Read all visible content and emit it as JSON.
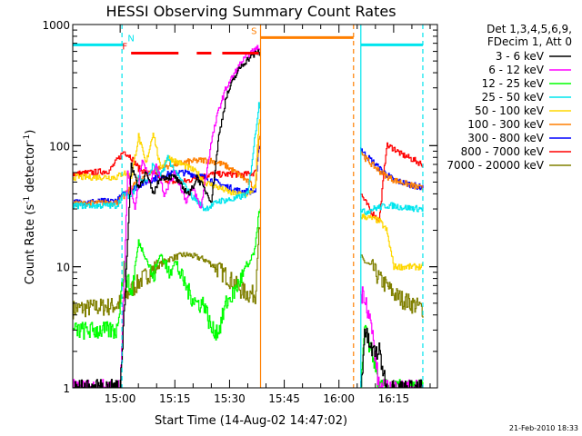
{
  "chart_data": {
    "type": "line",
    "title": "HESSI Observing Summary Count Rates",
    "xlabel": "Start Time (14-Aug-02 14:47:02)",
    "ylabel_main": "Count Rate (s",
    "ylabel_sup1": "-1",
    "ylabel_mid": " detector",
    "ylabel_sup2": "-1",
    "ylabel_end": ")",
    "y_scale": "log",
    "ylim": [
      1,
      1000
    ],
    "xlim_minutes": [
      0,
      100
    ],
    "x_ticks": [
      {
        "m": 13,
        "label": "15:00"
      },
      {
        "m": 28,
        "label": "15:15"
      },
      {
        "m": 43,
        "label": "15:30"
      },
      {
        "m": 58,
        "label": "15:45"
      },
      {
        "m": 73,
        "label": "16:00"
      },
      {
        "m": 88,
        "label": "16:15"
      }
    ],
    "y_ticks": [
      {
        "v": 1,
        "label": "1"
      },
      {
        "v": 10,
        "label": "10"
      },
      {
        "v": 100,
        "label": "100"
      },
      {
        "v": 1000,
        "label": "1000"
      }
    ],
    "legend_header": [
      "Det 1,3,4,5,6,9,",
      "FDecim 1, Att 0"
    ],
    "legend_position": "right",
    "timestamp": "21-Feb-2010 18:33",
    "flags": [
      {
        "label": "N",
        "color": "#00e5ee",
        "segments": [
          [
            0,
            14
          ],
          [
            79,
            96
          ]
        ],
        "y": 680
      },
      {
        "label": "F",
        "color": "#ff0000",
        "segments": [
          [
            16,
            29
          ],
          [
            34,
            38
          ],
          [
            41,
            51
          ]
        ],
        "y": 580
      },
      {
        "label": "S",
        "color": "#ff7f00",
        "segments": [
          [
            51.5,
            77
          ]
        ],
        "y": 780
      }
    ],
    "vlines": [
      {
        "m": 13.5,
        "color": "#00e5ee",
        "style": "dash"
      },
      {
        "m": 51.5,
        "color": "#ff7f00",
        "style": "solid"
      },
      {
        "m": 77,
        "color": "#ff7f00",
        "style": "dash"
      },
      {
        "m": 79,
        "color": "#00e5ee",
        "style": "solid"
      },
      {
        "m": 96,
        "color": "#00e5ee",
        "style": "dash"
      }
    ],
    "gaps": [
      [
        51.6,
        78.8
      ]
    ],
    "series": [
      {
        "name": "3 - 6 keV",
        "color": "#000000",
        "x": [
          0,
          13,
          16,
          18,
          20,
          22,
          24,
          28,
          30,
          32,
          34,
          38,
          40,
          42,
          44,
          46,
          48,
          51,
          79,
          80,
          82,
          84,
          86,
          88,
          90,
          96
        ],
        "y": [
          1,
          1,
          70,
          45,
          60,
          40,
          55,
          55,
          45,
          40,
          55,
          35,
          120,
          250,
          350,
          450,
          520,
          600,
          1,
          3,
          2,
          2,
          1,
          1,
          1,
          1
        ]
      },
      {
        "name": "6 - 12 keV",
        "color": "#ff00ff",
        "x": [
          0,
          13,
          15,
          17,
          19,
          21,
          23,
          25,
          28,
          31,
          33,
          35,
          38,
          40,
          42,
          44,
          46,
          48,
          51,
          79,
          80,
          82,
          84,
          86,
          88,
          90,
          96
        ],
        "y": [
          1,
          1,
          60,
          30,
          80,
          50,
          70,
          40,
          60,
          35,
          45,
          30,
          110,
          200,
          300,
          380,
          480,
          560,
          650,
          6,
          6,
          3,
          1,
          1,
          1,
          1,
          1
        ]
      },
      {
        "name": "12 - 25 keV",
        "color": "#00ff00",
        "x": [
          0,
          12,
          14,
          16,
          18,
          20,
          22,
          24,
          26,
          28,
          30,
          32,
          34,
          36,
          38,
          40,
          42,
          44,
          46,
          48,
          50,
          51,
          79,
          80,
          82,
          84,
          86,
          88,
          90,
          96
        ],
        "y": [
          3,
          3,
          10,
          6,
          16,
          12,
          8,
          13,
          9,
          11,
          8,
          6,
          5,
          5,
          3,
          3,
          5,
          6,
          8,
          10,
          14,
          30,
          1,
          3,
          2,
          1,
          1,
          1,
          1,
          1
        ]
      },
      {
        "name": "25 - 50 keV",
        "color": "#00e5ee",
        "x": [
          0,
          12,
          14,
          16,
          18,
          20,
          22,
          24,
          26,
          28,
          30,
          32,
          34,
          36,
          38,
          40,
          44,
          48,
          51,
          79,
          80,
          82,
          84,
          86,
          88,
          90,
          96
        ],
        "y": [
          32,
          32,
          40,
          38,
          55,
          50,
          70,
          55,
          80,
          60,
          50,
          40,
          35,
          30,
          32,
          35,
          36,
          40,
          220,
          30,
          28,
          30,
          31,
          32,
          32,
          31,
          30
        ]
      },
      {
        "name": "50 - 100 keV",
        "color": "#ffd700",
        "x": [
          0,
          12,
          14,
          16,
          18,
          20,
          22,
          24,
          26,
          28,
          30,
          32,
          34,
          36,
          40,
          44,
          48,
          50,
          51,
          79,
          80,
          82,
          84,
          86,
          88,
          90,
          96
        ],
        "y": [
          55,
          55,
          60,
          55,
          120,
          70,
          130,
          65,
          80,
          75,
          70,
          65,
          60,
          50,
          45,
          40,
          40,
          45,
          160,
          26,
          26,
          25,
          24,
          20,
          10,
          10,
          10
        ]
      },
      {
        "name": "100 - 300 keV",
        "color": "#ff7f00",
        "x": [
          0,
          12,
          14,
          16,
          18,
          20,
          22,
          24,
          26,
          28,
          30,
          32,
          34,
          36,
          38,
          40,
          42,
          44,
          46,
          48,
          50,
          51,
          79,
          80,
          82,
          84,
          86,
          88,
          90,
          96
        ],
        "y": [
          33,
          34,
          38,
          45,
          52,
          58,
          62,
          65,
          68,
          70,
          72,
          74,
          75,
          76,
          75,
          72,
          68,
          62,
          56,
          50,
          45,
          120,
          90,
          80,
          70,
          62,
          56,
          52,
          50,
          44
        ]
      },
      {
        "name": "300 - 800 keV",
        "color": "#0000ff",
        "x": [
          0,
          12,
          14,
          16,
          18,
          20,
          22,
          24,
          26,
          28,
          30,
          32,
          34,
          36,
          38,
          40,
          42,
          44,
          46,
          48,
          50,
          51,
          79,
          80,
          82,
          84,
          86,
          88,
          90,
          96
        ],
        "y": [
          34,
          35,
          40,
          43,
          47,
          50,
          53,
          56,
          58,
          60,
          60,
          59,
          57,
          55,
          52,
          49,
          46,
          44,
          42,
          42,
          42,
          100,
          95,
          85,
          75,
          65,
          58,
          52,
          50,
          45
        ]
      },
      {
        "name": "800 - 7000 keV",
        "color": "#ff0000",
        "x": [
          0,
          10,
          12,
          14,
          16,
          18,
          20,
          22,
          24,
          26,
          28,
          30,
          32,
          34,
          36,
          38,
          40,
          44,
          48,
          50,
          51,
          79,
          80,
          82,
          84,
          86,
          88,
          90,
          92,
          96
        ],
        "y": [
          58,
          62,
          75,
          90,
          80,
          65,
          60,
          58,
          55,
          52,
          50,
          50,
          52,
          55,
          56,
          58,
          58,
          58,
          58,
          60,
          100,
          40,
          35,
          28,
          24,
          100,
          95,
          85,
          80,
          70
        ]
      },
      {
        "name": "7000 - 20000 keV",
        "color": "#808000",
        "x": [
          0,
          12,
          14,
          16,
          18,
          20,
          22,
          24,
          26,
          28,
          30,
          32,
          34,
          36,
          38,
          40,
          42,
          44,
          46,
          48,
          50,
          51,
          79,
          80,
          82,
          84,
          86,
          88,
          90,
          96
        ],
        "y": [
          4.5,
          4.8,
          5.5,
          6.5,
          7.5,
          8.5,
          9.5,
          10.5,
          11.5,
          12,
          12.5,
          12.5,
          12,
          11.5,
          10.5,
          9.5,
          8.5,
          7.5,
          6.5,
          6,
          6,
          20,
          12,
          11,
          10,
          8,
          7,
          6,
          5.5,
          4.5
        ]
      }
    ]
  }
}
